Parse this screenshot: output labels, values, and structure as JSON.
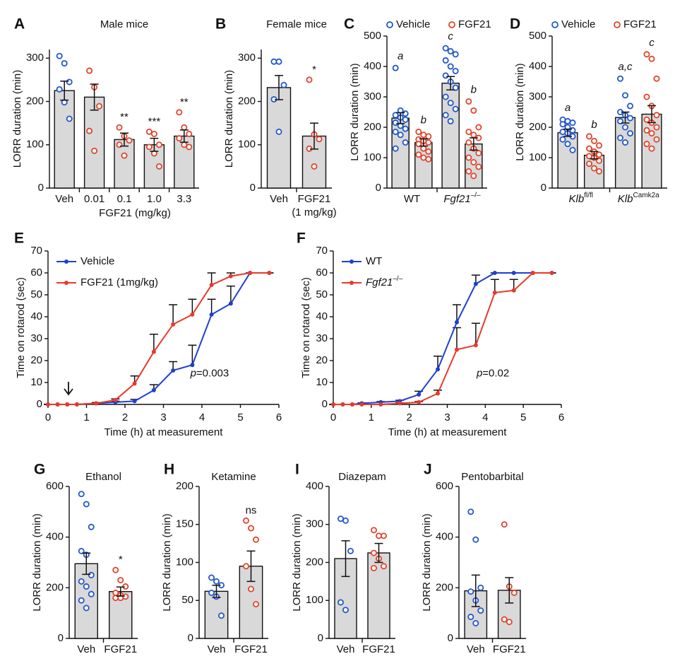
{
  "chart_data": [
    {
      "panel": "A",
      "type": "bar",
      "title": "Male mice",
      "ylabel": "LORR duration (min)",
      "xlabel": "FGF21 (mg/kg)",
      "categories": [
        "Veh",
        "0.01",
        "0.1",
        "1.0",
        "3.3"
      ],
      "values": [
        225,
        210,
        112,
        100,
        120
      ],
      "errors": [
        22,
        30,
        15,
        15,
        14
      ],
      "points": [
        [
          305,
          288,
          245,
          228,
          198,
          160
        ],
        [
          271,
          233,
          189,
          132,
          86
        ],
        [
          140,
          120,
          110,
          100,
          75
        ],
        [
          130,
          125,
          100,
          95,
          80,
          50
        ],
        [
          175,
          140,
          125,
          115,
          100,
          95
        ]
      ],
      "point_colors": [
        "#2257cc",
        "#e0442c",
        "#e0442c",
        "#e0442c",
        "#e0442c"
      ],
      "annotations": [
        null,
        null,
        "**",
        "***",
        "**"
      ],
      "bar_color": "#d9d9d9",
      "ylim": [
        0,
        320
      ],
      "yticks": [
        0,
        100,
        200,
        300
      ]
    },
    {
      "panel": "B",
      "type": "bar",
      "title": "Female mice",
      "ylabel": "LORR duration (min)",
      "categories": [
        "Veh",
        {
          "text": "FGF21",
          "line2": "(1 mg/kg)"
        }
      ],
      "values": [
        232,
        120
      ],
      "errors": [
        28,
        30
      ],
      "points": [
        [
          292,
          292,
          238,
          205,
          130
        ],
        [
          250,
          124,
          113,
          91,
          50
        ]
      ],
      "point_colors": [
        "#2257cc",
        "#e0442c"
      ],
      "annotations": [
        null,
        "*"
      ],
      "bar_color": "#d9d9d9",
      "ylim": [
        0,
        320
      ],
      "yticks": [
        0,
        100,
        200,
        300
      ]
    },
    {
      "panel": "C",
      "type": "grouped_bar",
      "ylabel": "LORR duration (min)",
      "groups": [
        "WT",
        {
          "em": "Fgf21",
          "sup": "–/–"
        }
      ],
      "series": [
        {
          "name": "Vehicle",
          "color": "#2257cc",
          "values": [
            230,
            345
          ],
          "errors": [
            18,
            22
          ],
          "labels": [
            "a",
            "c"
          ],
          "points": [
            [
              395,
              255,
              245,
              240,
              232,
              225,
              215,
              205,
              195,
              185,
              175,
              150,
              130
            ],
            [
              460,
              450,
              440,
              420,
              400,
              385,
              370,
              350,
              330,
              300,
              280,
              260,
              240,
              220
            ]
          ]
        },
        {
          "name": "FGF21",
          "color": "#e0442c",
          "values": [
            150,
            145
          ],
          "errors": [
            12,
            20
          ],
          "labels": [
            "b",
            "b"
          ],
          "points": [
            [
              185,
              175,
              170,
              160,
              155,
              150,
              145,
              130,
              120,
              110,
              100,
              95
            ],
            [
              285,
              255,
              200,
              185,
              175,
              165,
              150,
              130,
              115,
              100,
              85,
              70,
              55,
              40
            ]
          ]
        }
      ],
      "bar_color": "#d9d9d9",
      "ylim": [
        0,
        500
      ],
      "yticks": [
        0,
        100,
        200,
        300,
        400,
        500
      ]
    },
    {
      "panel": "D",
      "type": "grouped_bar",
      "ylabel": "LORR duration (min)",
      "groups": [
        {
          "em": "Klb",
          "sup": "fl/fl"
        },
        {
          "em": "Klb",
          "sup": "Camk2a"
        }
      ],
      "series": [
        {
          "name": "Vehicle",
          "color": "#2257cc",
          "values": [
            182,
            232
          ],
          "errors": [
            12,
            18
          ],
          "labels": [
            "a",
            "a,c"
          ],
          "points": [
            [
              225,
              220,
              215,
              210,
              200,
              190,
              185,
              180,
              170,
              160,
              145,
              125
            ],
            [
              360,
              305,
              270,
              250,
              240,
              230,
              220,
              200,
              180,
              165,
              150
            ]
          ]
        },
        {
          "name": "FGF21",
          "color": "#e0442c",
          "values": [
            108,
            243
          ],
          "errors": [
            12,
            28
          ],
          "labels": [
            "b",
            "c"
          ],
          "points": [
            [
              170,
              155,
              140,
              130,
              120,
              110,
              105,
              100,
              90,
              80,
              65,
              55
            ],
            [
              440,
              425,
              360,
              300,
              270,
              240,
              225,
              215,
              200,
              190,
              180,
              160,
              145,
              130
            ]
          ]
        }
      ],
      "bar_color": "#d9d9d9",
      "ylim": [
        0,
        500
      ],
      "yticks": [
        0,
        100,
        200,
        300,
        400,
        500
      ]
    },
    {
      "panel": "E",
      "type": "line",
      "ylabel": "Time on rotarod (sec)",
      "xlabel": "Time (h) at measurement",
      "x": [
        0,
        0.25,
        0.5,
        0.75,
        1.25,
        1.75,
        2.25,
        2.75,
        3.25,
        3.75,
        4.25,
        4.75,
        5.25,
        5.75
      ],
      "series": [
        {
          "name": "Vehicle",
          "color": "#1f3fd0",
          "values": [
            0,
            0,
            0,
            0,
            0.5,
            1,
            1.5,
            6.5,
            15.5,
            18,
            41,
            46,
            60,
            60
          ],
          "errors": [
            0,
            0,
            0,
            0,
            0.3,
            0.5,
            0.8,
            2.5,
            4,
            9,
            7,
            8,
            0,
            0
          ]
        },
        {
          "name": "FGF21 (1mg/kg)",
          "color": "#e8392b",
          "values": [
            0,
            0,
            0,
            0,
            0.5,
            2,
            9.5,
            24,
            36.5,
            41,
            54.5,
            58.5,
            60,
            60
          ],
          "errors": [
            0,
            0,
            0,
            0,
            0.3,
            0.5,
            3.5,
            8,
            9,
            7,
            5.5,
            1.5,
            0,
            0
          ]
        }
      ],
      "annotation": {
        "em": "p",
        "text": "=0.003"
      },
      "xlim": [
        0,
        6
      ],
      "xticks": [
        0,
        1,
        2,
        3,
        4,
        5,
        6
      ],
      "ylim": [
        0,
        70
      ],
      "yticks": [
        0,
        10,
        20,
        30,
        40,
        50,
        60,
        70
      ]
    },
    {
      "panel": "F",
      "type": "line",
      "ylabel": "Time on rotarod (sec)",
      "xlabel": "Time (h) at measurement",
      "x": [
        0,
        0.25,
        0.5,
        0.75,
        1.25,
        1.75,
        2.25,
        2.75,
        3.25,
        3.75,
        4.25,
        4.75,
        5.25,
        5.75
      ],
      "series": [
        {
          "name": "WT",
          "color": "#1f3fd0",
          "values": [
            0,
            0,
            0,
            0.5,
            1,
            1.5,
            4.5,
            16,
            37.5,
            55,
            60,
            60,
            60,
            60
          ],
          "errors": [
            0,
            0,
            0,
            0.2,
            0.3,
            0.4,
            1.5,
            6,
            8,
            4,
            0,
            0,
            0,
            0
          ]
        },
        {
          "name": {
            "em": "Fgf21",
            "sup": "–/–"
          },
          "color": "#e8392b",
          "values": [
            0,
            0,
            0,
            0,
            0,
            0.5,
            1,
            5,
            25,
            27,
            51,
            52,
            60,
            60
          ],
          "errors": [
            0,
            0,
            0,
            0,
            0,
            0.2,
            0.3,
            1.5,
            10,
            10,
            6,
            5,
            0,
            0
          ]
        }
      ],
      "annotation": {
        "em": "p",
        "text": "=0.02"
      },
      "xlim": [
        0,
        6
      ],
      "xticks": [
        0,
        1,
        2,
        3,
        4,
        5,
        6
      ],
      "ylim": [
        0,
        70
      ],
      "yticks": [
        0,
        10,
        20,
        30,
        40,
        50,
        60,
        70
      ]
    },
    {
      "panel": "G",
      "type": "bar",
      "title": "Ethanol",
      "ylabel": "LORR duration (min)",
      "categories": [
        "Veh",
        "FGF21"
      ],
      "values": [
        295,
        185
      ],
      "errors": [
        42,
        18
      ],
      "points": [
        [
          570,
          530,
          440,
          345,
          330,
          250,
          225,
          205,
          175,
          150,
          120
        ],
        [
          270,
          230,
          205,
          180,
          170,
          165,
          160,
          160
        ]
      ],
      "point_colors": [
        "#2257cc",
        "#e0442c"
      ],
      "annotations": [
        null,
        "*"
      ],
      "bar_color": "#d9d9d9",
      "ylim": [
        0,
        600
      ],
      "yticks": [
        0,
        200,
        400,
        600
      ]
    },
    {
      "panel": "H",
      "type": "bar",
      "title": "Ketamine",
      "ylabel": "LORR duration (min)",
      "categories": [
        "Veh",
        "FGF21"
      ],
      "values": [
        62,
        95
      ],
      "errors": [
        8,
        20
      ],
      "points": [
        [
          80,
          75,
          70,
          60,
          55,
          30
        ],
        [
          155,
          145,
          130,
          95,
          65,
          45
        ]
      ],
      "point_colors": [
        "#2257cc",
        "#e0442c"
      ],
      "annotations": [
        null,
        "ns"
      ],
      "bar_color": "#d9d9d9",
      "ylim": [
        0,
        200
      ],
      "yticks": [
        0,
        50,
        100,
        150,
        200
      ]
    },
    {
      "panel": "I",
      "type": "bar",
      "title": "Diazepam",
      "ylabel": "LORR duration (min)",
      "categories": [
        "Veh",
        "FGF21"
      ],
      "values": [
        210,
        225
      ],
      "errors": [
        47,
        25
      ],
      "points": [
        [
          315,
          310,
          230,
          95,
          75
        ],
        [
          285,
          270,
          270,
          225,
          210,
          190,
          185
        ]
      ],
      "point_colors": [
        "#2257cc",
        "#e0442c"
      ],
      "annotations": [
        null,
        null
      ],
      "bar_color": "#d9d9d9",
      "ylim": [
        0,
        400
      ],
      "yticks": [
        0,
        100,
        200,
        300,
        400
      ]
    },
    {
      "panel": "J",
      "type": "bar",
      "title": "Pentobarbital",
      "ylabel": "LORR duration (min)",
      "categories": [
        "Veh",
        "FGF21"
      ],
      "values": [
        188,
        190
      ],
      "errors": [
        62,
        50
      ],
      "points": [
        [
          500,
          390,
          200,
          185,
          150,
          110,
          85,
          60
        ],
        [
          450,
          205,
          180,
          75,
          65
        ]
      ],
      "point_colors": [
        "#2257cc",
        "#e0442c"
      ],
      "annotations": [
        null,
        null
      ],
      "bar_color": "#d9d9d9",
      "ylim": [
        0,
        600
      ],
      "yticks": [
        0,
        200,
        400,
        600
      ]
    }
  ]
}
